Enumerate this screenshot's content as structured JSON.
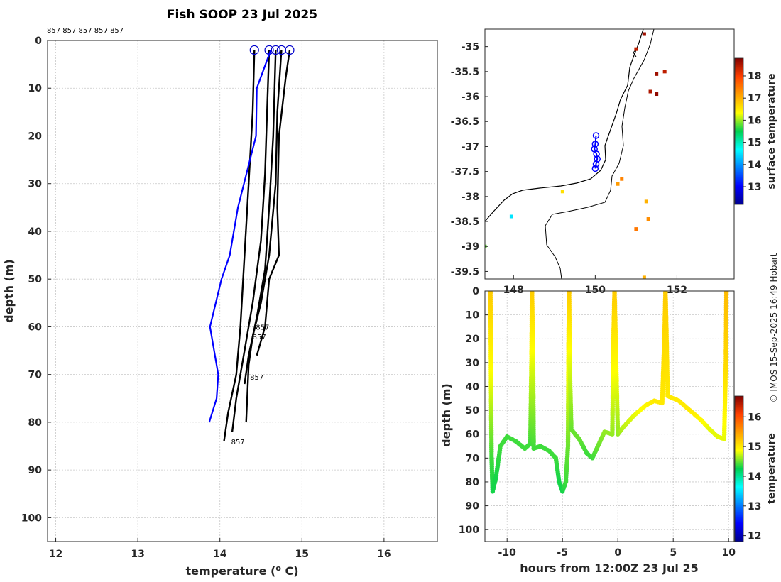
{
  "title": "Fish SOOP 23 Jul 2025",
  "credit": "© IMOS 15-Sep-2025 16:49 Hobart",
  "profile_ids": "857 857 857 857 857",
  "chart_data": [
    {
      "type": "line",
      "name": "profiles",
      "xlabel": "temperature (",
      "xlabel_sup": "o",
      "xlabel_tail": " C)",
      "ylabel": "depth (m)",
      "xlim": [
        11.9,
        16.65
      ],
      "ylim": [
        0,
        105
      ],
      "xticks": [
        12,
        13,
        14,
        15,
        16
      ],
      "yticks": [
        0,
        10,
        20,
        30,
        40,
        50,
        60,
        70,
        80,
        90,
        100
      ],
      "reference": {
        "name": "climatology",
        "color": "#0000ff",
        "points": [
          [
            14.62,
            2
          ],
          [
            14.45,
            10
          ],
          [
            14.44,
            20
          ],
          [
            14.22,
            35
          ],
          [
            14.12,
            45
          ],
          [
            14.02,
            50
          ],
          [
            13.88,
            60
          ],
          [
            13.98,
            70
          ],
          [
            13.96,
            75
          ],
          [
            13.87,
            80
          ]
        ]
      },
      "series": [
        {
          "name": "857",
          "points": [
            [
              14.42,
              2
            ],
            [
              14.4,
              15
            ],
            [
              14.35,
              30
            ],
            [
              14.3,
              45
            ],
            [
              14.25,
              60
            ],
            [
              14.2,
              70
            ],
            [
              14.1,
              78
            ],
            [
              14.05,
              84
            ]
          ]
        },
        {
          "name": "857",
          "points": [
            [
              14.6,
              2
            ],
            [
              14.58,
              12
            ],
            [
              14.55,
              28
            ],
            [
              14.5,
              42
            ],
            [
              14.4,
              55
            ],
            [
              14.3,
              65
            ],
            [
              14.2,
              75
            ],
            [
              14.15,
              82
            ]
          ]
        },
        {
          "name": "857",
          "points": [
            [
              14.68,
              2
            ],
            [
              14.65,
              20
            ],
            [
              14.6,
              35
            ],
            [
              14.55,
              48
            ],
            [
              14.45,
              58
            ],
            [
              14.35,
              66
            ],
            [
              14.3,
              72
            ]
          ]
        },
        {
          "name": "857",
          "points": [
            [
              14.75,
              2
            ],
            [
              14.7,
              15
            ],
            [
              14.68,
              30
            ],
            [
              14.6,
              45
            ],
            [
              14.5,
              55
            ],
            [
              14.4,
              62
            ],
            [
              14.35,
              68
            ],
            [
              14.32,
              80
            ]
          ]
        },
        {
          "name": "857",
          "points": [
            [
              14.85,
              2
            ],
            [
              14.8,
              8
            ],
            [
              14.72,
              20
            ],
            [
              14.7,
              35
            ],
            [
              14.72,
              45
            ],
            [
              14.6,
              50
            ],
            [
              14.55,
              60
            ],
            [
              14.45,
              66
            ]
          ]
        }
      ],
      "labels": [
        {
          "text": "857",
          "x": 14.42,
          "y": 60
        },
        {
          "text": "857",
          "x": 14.38,
          "y": 62
        },
        {
          "text": "857",
          "x": 14.35,
          "y": 70.5
        },
        {
          "text": "857",
          "x": 14.12,
          "y": 84
        }
      ]
    },
    {
      "type": "map",
      "name": "track",
      "xlim": [
        147.3,
        153.4
      ],
      "ylim": [
        -39.65,
        -34.65
      ],
      "xticks": [
        148,
        150,
        152
      ],
      "yticks": [
        -35,
        -35.5,
        -36,
        -36.5,
        -37,
        -37.5,
        -38,
        -38.5,
        -39,
        -39.5
      ],
      "xticklabels": [
        "148",
        "150",
        "152"
      ],
      "yticklabels": [
        "-35",
        "-35.5",
        "-36",
        "-36.5",
        "-37",
        "-37.5",
        "-38",
        "-38.5",
        "-39",
        "-39.5"
      ],
      "colorbar": {
        "label": "surface temperature",
        "min": 12.2,
        "max": 18.8,
        "ticks": [
          13,
          14,
          15,
          16,
          17,
          18
        ]
      },
      "track": [
        [
          150.02,
          -36.78
        ],
        [
          150.0,
          -36.95
        ],
        [
          149.98,
          -37.05
        ],
        [
          150.03,
          -37.15
        ],
        [
          150.05,
          -37.25
        ],
        [
          150.02,
          -37.35
        ],
        [
          150.0,
          -37.44
        ]
      ],
      "sst_points": [
        [
          151.2,
          -34.75,
          18.6
        ],
        [
          151.0,
          -35.05,
          18.4
        ],
        [
          151.5,
          -35.55,
          18.6
        ],
        [
          151.35,
          -35.9,
          18.5
        ],
        [
          151.5,
          -35.95,
          18.7
        ],
        [
          151.7,
          -35.5,
          18.4
        ],
        [
          150.65,
          -37.65,
          17.4
        ],
        [
          150.55,
          -37.75,
          17.2
        ],
        [
          151.25,
          -38.1,
          17.0
        ],
        [
          151.0,
          -38.65,
          17.5
        ],
        [
          151.3,
          -38.45,
          17.3
        ],
        [
          149.2,
          -37.9,
          16.6
        ],
        [
          147.95,
          -38.4,
          14.5
        ],
        [
          147.3,
          -39.0,
          15.8
        ],
        [
          151.2,
          -39.62,
          17.0
        ]
      ]
    },
    {
      "type": "scatter",
      "name": "time-depth",
      "xlabel": "hours from 12:00Z 23 Jul 25",
      "ylabel": "depth (m)",
      "xlim": [
        -12,
        10.5
      ],
      "ylim": [
        0,
        105
      ],
      "xticks": [
        -10,
        -5,
        0,
        5,
        10
      ],
      "yticks": [
        0,
        10,
        20,
        30,
        40,
        50,
        60,
        70,
        80,
        90,
        100
      ],
      "colorbar": {
        "label": "temperature",
        "min": 11.8,
        "max": 16.7,
        "ticks": [
          12,
          13,
          14,
          15,
          16
        ]
      },
      "track": [
        [
          -11.5,
          0,
          15.2
        ],
        [
          -11.45,
          40,
          14.8
        ],
        [
          -11.4,
          70,
          14.4
        ],
        [
          -11.3,
          84,
          14.3
        ],
        [
          -11.0,
          78,
          14.3
        ],
        [
          -10.6,
          65,
          14.4
        ],
        [
          -10.0,
          61,
          14.4
        ],
        [
          -9.2,
          63,
          14.4
        ],
        [
          -8.4,
          66,
          14.4
        ],
        [
          -7.9,
          64,
          14.4
        ],
        [
          -7.8,
          30,
          14.8
        ],
        [
          -7.75,
          0,
          15.2
        ],
        [
          -7.65,
          30,
          14.8
        ],
        [
          -7.6,
          66,
          14.4
        ],
        [
          -7.0,
          65,
          14.4
        ],
        [
          -6.2,
          67,
          14.4
        ],
        [
          -5.6,
          70,
          14.4
        ],
        [
          -5.3,
          80,
          14.3
        ],
        [
          -5.0,
          84,
          14.3
        ],
        [
          -4.7,
          80,
          14.4
        ],
        [
          -4.5,
          65,
          14.5
        ],
        [
          -4.45,
          20,
          15.0
        ],
        [
          -4.4,
          0,
          15.2
        ],
        [
          -4.35,
          30,
          14.8
        ],
        [
          -4.2,
          58,
          14.5
        ],
        [
          -3.5,
          62,
          14.5
        ],
        [
          -2.8,
          68,
          14.4
        ],
        [
          -2.3,
          70,
          14.4
        ],
        [
          -1.8,
          65,
          14.5
        ],
        [
          -1.2,
          59,
          14.6
        ],
        [
          -0.5,
          60,
          14.6
        ],
        [
          -0.4,
          20,
          15.0
        ],
        [
          -0.3,
          0,
          15.2
        ],
        [
          -0.2,
          20,
          15.0
        ],
        [
          0,
          60,
          14.6
        ],
        [
          0.5,
          57,
          14.7
        ],
        [
          1.5,
          52,
          14.8
        ],
        [
          2.5,
          48,
          14.9
        ],
        [
          3.3,
          46,
          15.0
        ],
        [
          4.0,
          47,
          15.0
        ],
        [
          4.2,
          20,
          15.1
        ],
        [
          4.3,
          0,
          15.2
        ],
        [
          4.4,
          20,
          15.1
        ],
        [
          4.5,
          44,
          15.0
        ],
        [
          5.5,
          46,
          15.0
        ],
        [
          6.5,
          50,
          15.0
        ],
        [
          7.5,
          54,
          14.9
        ],
        [
          8.3,
          58,
          14.8
        ],
        [
          9.0,
          61,
          14.8
        ],
        [
          9.6,
          62,
          14.8
        ],
        [
          9.75,
          30,
          15.1
        ],
        [
          9.8,
          0,
          15.3
        ]
      ]
    }
  ]
}
